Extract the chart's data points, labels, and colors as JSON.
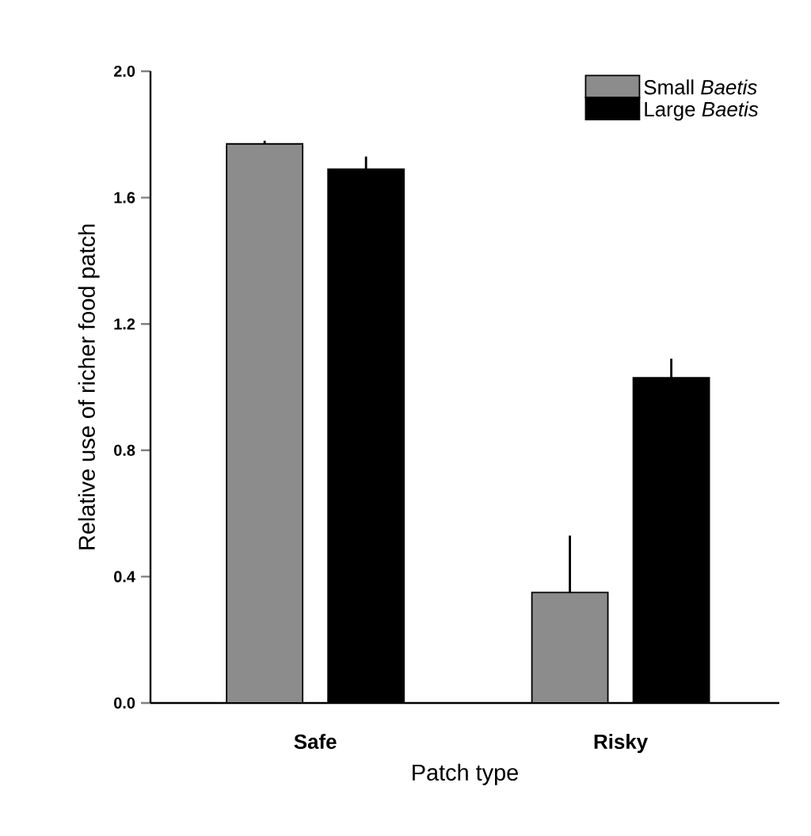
{
  "chart_data": {
    "type": "bar",
    "xlabel": "Patch type",
    "ylabel": "Relative use of richer food patch",
    "categories": [
      "Safe",
      "Risky"
    ],
    "series": [
      {
        "name": "Small *Baetis*",
        "color": "#8c8c8c",
        "values": [
          1.77,
          0.35
        ],
        "errors": [
          [
            1.77,
            1.78
          ],
          [
            0.35,
            0.53
          ]
        ]
      },
      {
        "name": "Large *Baetis*",
        "color": "#000000",
        "values": [
          1.69,
          1.03
        ],
        "errors": [
          [
            1.69,
            1.73
          ],
          [
            1.03,
            1.09
          ]
        ]
      }
    ],
    "ylim": [
      0,
      2.0
    ],
    "yticks": [
      {
        "value": 0,
        "label": "0.0"
      },
      {
        "value": 0.4,
        "label": "0.4"
      },
      {
        "value": 0.8,
        "label": "0.8"
      },
      {
        "value": 1.2,
        "label": "1.2"
      },
      {
        "value": 1.6,
        "label": "1.6"
      },
      {
        "value": 2.0,
        "label": "2.0"
      }
    ],
    "legend": "top right",
    "grid": false
  }
}
